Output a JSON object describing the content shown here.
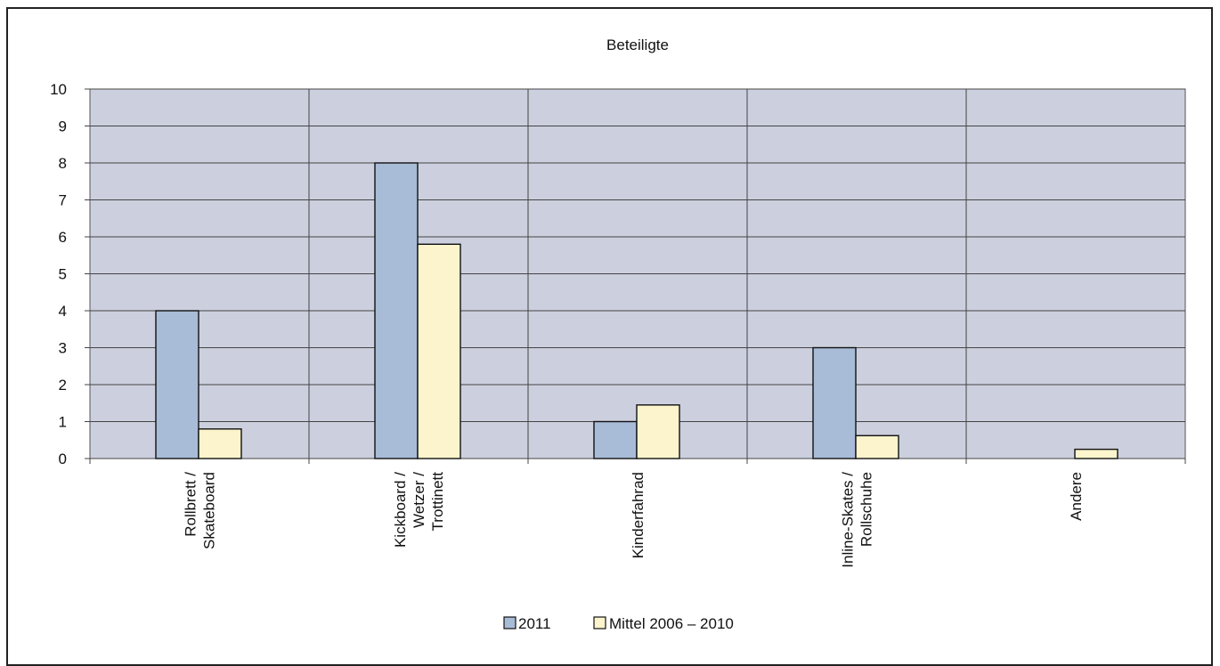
{
  "chart_data": {
    "type": "bar",
    "title": "Beteiligte",
    "categories": [
      [
        "Rollbrett /",
        "Skateboard"
      ],
      [
        "Kickboard /",
        "Wetzer /",
        "Trottinett"
      ],
      [
        "Kinderfahrad"
      ],
      [
        "Inline-Skates /",
        "Rollschuhe"
      ],
      [
        "Andere"
      ]
    ],
    "series": [
      {
        "name": "2011",
        "values": [
          4,
          8,
          1,
          3,
          0
        ],
        "color": "#a8bcd8"
      },
      {
        "name": "Mittel  2006 – 2010",
        "values": [
          0.8,
          5.8,
          1.45,
          0.62,
          0.25
        ],
        "color": "#fbf4cc"
      }
    ],
    "ylim": [
      0,
      10
    ],
    "yticks": [
      0,
      1,
      2,
      3,
      4,
      5,
      6,
      7,
      8,
      9,
      10
    ],
    "grid": true,
    "plot_background": "#ccd0de",
    "legend_position": "bottom-center"
  }
}
